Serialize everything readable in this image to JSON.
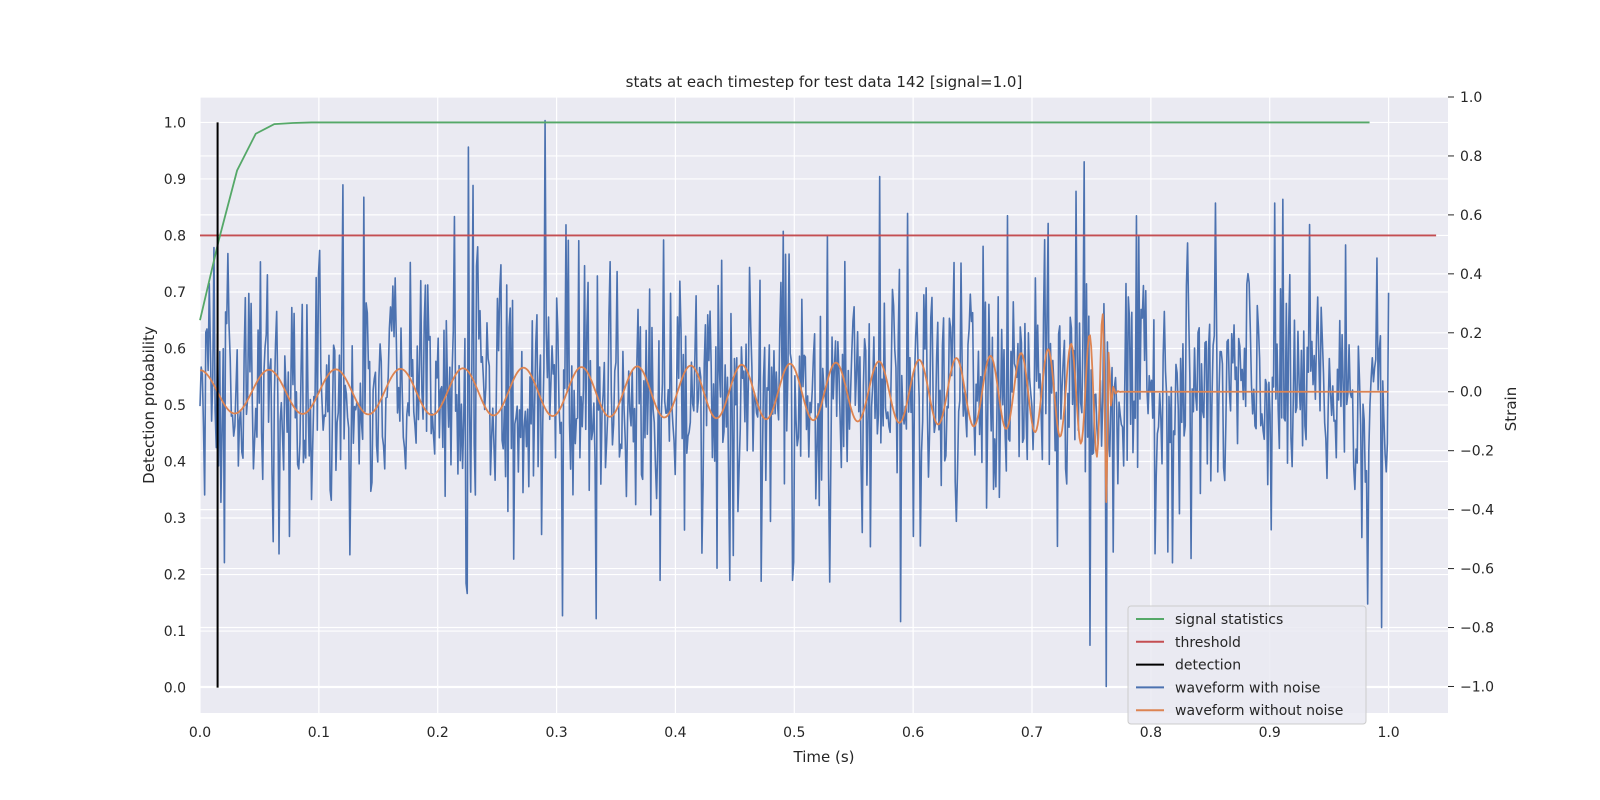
{
  "chart_data": {
    "type": "line",
    "title": "stats at each timestep for test data 142 [signal=1.0]",
    "xlabel": "Time (s)",
    "ylabel": "Detection probability",
    "y2label": "Strain",
    "xlim": [
      0.0,
      1.05
    ],
    "ylim": [
      -0.045,
      1.045
    ],
    "y2lim": [
      -1.09,
      1.0
    ],
    "xticks": [
      "0.0",
      "0.1",
      "0.2",
      "0.3",
      "0.4",
      "0.5",
      "0.6",
      "0.7",
      "0.8",
      "0.9",
      "1.0"
    ],
    "yticks": [
      "0.0",
      "0.1",
      "0.2",
      "0.3",
      "0.4",
      "0.5",
      "0.6",
      "0.7",
      "0.8",
      "0.9",
      "1.0"
    ],
    "y2ticks": [
      "−1.0",
      "−0.8",
      "−0.6",
      "−0.4",
      "−0.2",
      "0.0",
      "0.2",
      "0.4",
      "0.6",
      "0.8",
      "1.0"
    ],
    "grid": true,
    "legend_position": "bottom-right",
    "colors": {
      "signal_statistics": "#55a868",
      "threshold": "#c44e52",
      "detection": "#000000",
      "waveform_with_noise": "#4c72b0",
      "waveform_without_noise": "#dd8452",
      "plot_background": "#eaeaf2",
      "grid": "#ffffff"
    },
    "series": [
      {
        "name": "signal statistics",
        "axis": "left",
        "x": [
          0.0,
          0.0156,
          0.0312,
          0.0469,
          0.0625,
          0.0781,
          0.0938,
          0.1094,
          0.125,
          0.25,
          0.5,
          0.75,
          0.984
        ],
        "y": [
          0.65,
          0.79,
          0.915,
          0.98,
          0.997,
          0.999,
          1.0,
          1.0,
          1.0,
          1.0,
          1.0,
          1.0,
          1.0
        ]
      },
      {
        "name": "threshold",
        "axis": "left",
        "x": [
          0.0,
          1.04
        ],
        "y": [
          0.8,
          0.8
        ]
      },
      {
        "name": "detection",
        "axis": "left",
        "x": [
          0.0148,
          0.0148
        ],
        "y": [
          0.0,
          1.0
        ]
      },
      {
        "name": "waveform with noise",
        "axis": "right",
        "x_start": 0.0,
        "x_end": 1.0,
        "n_points": 1024,
        "spikes": [
          {
            "x": 0.29,
            "y": 0.92
          },
          {
            "x": 0.226,
            "y": 0.83
          },
          {
            "x": 0.23,
            "y": 0.7
          },
          {
            "x": 0.744,
            "y": 0.78
          },
          {
            "x": 0.572,
            "y": 0.73
          },
          {
            "x": 0.904,
            "y": 0.64
          },
          {
            "x": 0.737,
            "y": 0.68
          },
          {
            "x": 0.138,
            "y": 0.66
          },
          {
            "x": 0.305,
            "y": -0.76
          },
          {
            "x": 0.333,
            "y": -0.77
          },
          {
            "x": 0.589,
            "y": -0.78
          },
          {
            "x": 0.749,
            "y": -0.86
          },
          {
            "x": 0.762,
            "y": -1.0
          },
          {
            "x": 0.994,
            "y": -0.8
          },
          {
            "x": 0.982,
            "y": -0.72
          },
          {
            "x": 0.021,
            "y": -0.58
          },
          {
            "x": 0.066,
            "y": -0.55
          },
          {
            "x": 0.224,
            "y": -0.65
          },
          {
            "x": 0.387,
            "y": -0.64
          },
          {
            "x": 0.446,
            "y": -0.64
          },
          {
            "x": 0.499,
            "y": -0.64
          }
        ]
      },
      {
        "name": "waveform without noise",
        "axis": "right",
        "x_start": 0.0,
        "x_end": 1.0,
        "n_points": 1024,
        "merger_time": 0.763,
        "amplitude_start": 0.09,
        "amplitude_peak": 0.45,
        "frequency_start_hz": 17,
        "frequency_peak_hz": 260
      }
    ]
  }
}
